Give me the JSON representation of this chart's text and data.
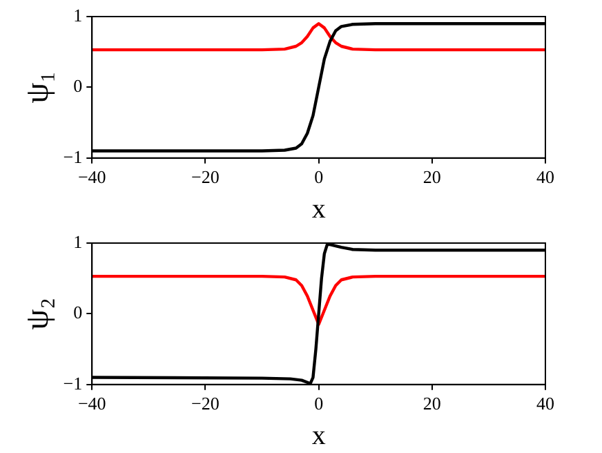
{
  "chart_data": [
    {
      "type": "line",
      "xlabel": "x",
      "ylabel": "ψ₁",
      "xlim": [
        -40,
        40
      ],
      "ylim": [
        -1,
        1
      ],
      "xticks": [
        -40,
        -20,
        0,
        20,
        40
      ],
      "yticks": [
        -1,
        0,
        1
      ],
      "grid": false,
      "legend": false,
      "marker": "none",
      "series": [
        {
          "color": "#000000",
          "x": [
            -40,
            -10,
            -6,
            -4,
            -3,
            -2,
            -1,
            0,
            1,
            2,
            3,
            4,
            6,
            10,
            40
          ],
          "values": [
            -0.9,
            -0.9,
            -0.89,
            -0.86,
            -0.8,
            -0.65,
            -0.4,
            0,
            0.4,
            0.65,
            0.8,
            0.86,
            0.89,
            0.9,
            0.9
          ]
        },
        {
          "color": "#ff0000",
          "x": [
            -40,
            -10,
            -6,
            -4,
            -3,
            -2,
            -1,
            0,
            1,
            2,
            3,
            4,
            6,
            10,
            40
          ],
          "values": [
            0.53,
            0.53,
            0.54,
            0.58,
            0.63,
            0.72,
            0.84,
            0.9,
            0.84,
            0.72,
            0.63,
            0.58,
            0.54,
            0.53,
            0.53
          ]
        }
      ]
    },
    {
      "type": "line",
      "xlabel": "x",
      "ylabel": "ψ₂",
      "xlim": [
        -40,
        40
      ],
      "ylim": [
        -1,
        1
      ],
      "xticks": [
        -40,
        -20,
        0,
        20,
        40
      ],
      "yticks": [
        -1,
        0,
        1
      ],
      "grid": false,
      "legend": false,
      "marker": "none",
      "series": [
        {
          "color": "#000000",
          "x": [
            -40,
            -10,
            -5,
            -3,
            -2,
            -1.5,
            -1,
            -0.5,
            0,
            0.5,
            1,
            1.5,
            2,
            3,
            4,
            6,
            10,
            40
          ],
          "values": [
            -0.9,
            -0.91,
            -0.92,
            -0.94,
            -0.97,
            -0.99,
            -0.9,
            -0.5,
            0,
            0.5,
            0.85,
            0.98,
            0.98,
            0.96,
            0.94,
            0.91,
            0.9,
            0.9
          ]
        },
        {
          "color": "#ff0000",
          "x": [
            -40,
            -10,
            -6,
            -4,
            -3,
            -2,
            -1,
            0,
            1,
            2,
            3,
            4,
            6,
            10,
            40
          ],
          "values": [
            0.53,
            0.53,
            0.52,
            0.48,
            0.4,
            0.25,
            0.05,
            -0.15,
            0.05,
            0.25,
            0.4,
            0.48,
            0.52,
            0.53,
            0.53
          ]
        }
      ]
    }
  ]
}
